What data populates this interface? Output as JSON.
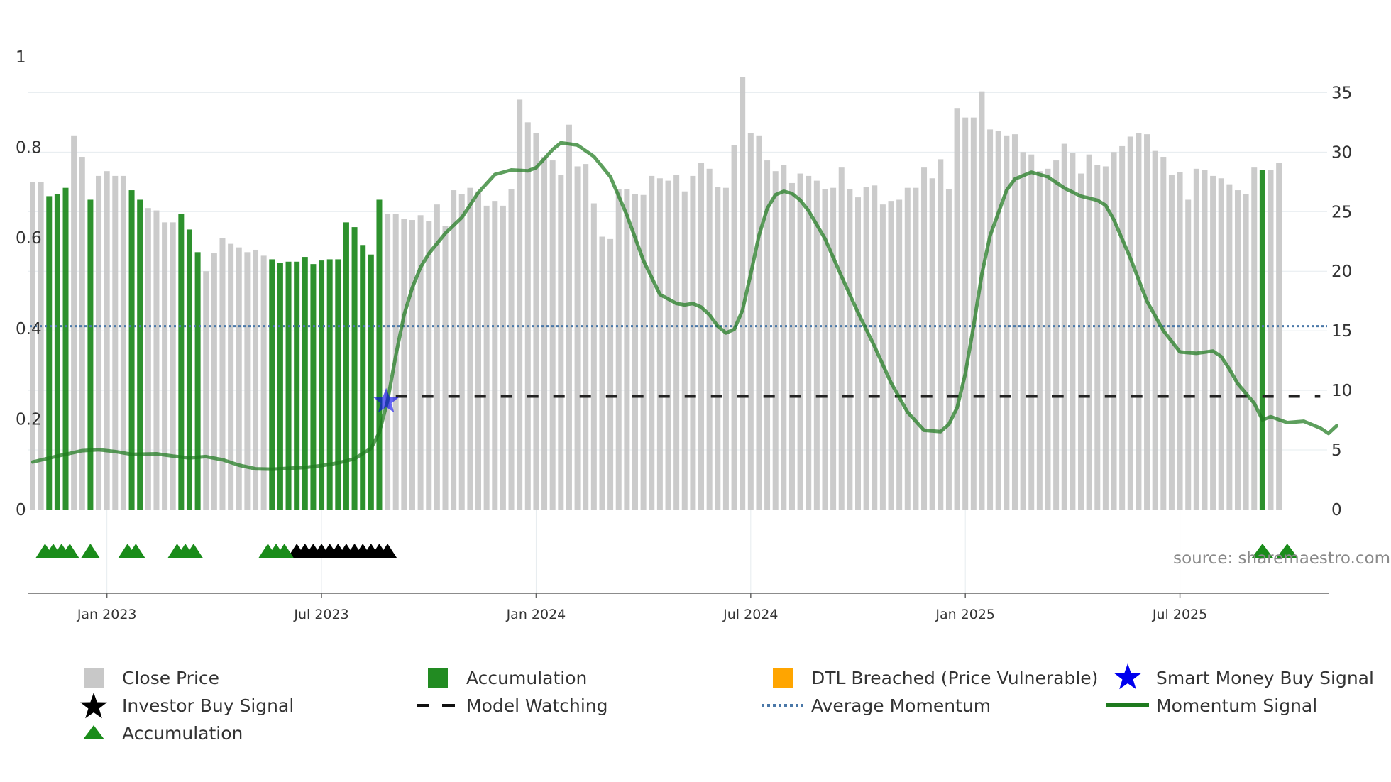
{
  "chart_data": {
    "type": "bar",
    "title": "",
    "source": "source: sharemaestro.com",
    "left_axis": {
      "range": [
        0,
        1
      ],
      "ticks": [
        0,
        0.2,
        0.4,
        0.6,
        0.8,
        1
      ],
      "tick_labels": [
        "0",
        "0.2",
        "0.4",
        "0.6",
        "0.8",
        "1"
      ]
    },
    "right_axis": {
      "range": [
        0,
        38
      ],
      "ticks": [
        0,
        5,
        10,
        15,
        20,
        25,
        30,
        35
      ],
      "tick_labels": [
        "0",
        "5",
        "10",
        "15",
        "20",
        "25",
        "30",
        "35"
      ]
    },
    "x_axis": {
      "start_week": 0,
      "ticks": [
        {
          "week": 9,
          "label": "Jan 2023"
        },
        {
          "week": 35,
          "label": "Jul 2023"
        },
        {
          "week": 61,
          "label": "Jan 2024"
        },
        {
          "week": 87,
          "label": "Jul 2024"
        },
        {
          "week": 113,
          "label": "Jan 2025"
        },
        {
          "week": 139,
          "label": "Jul 2025"
        }
      ]
    },
    "close_price_weekly": [
      27.5,
      27.5,
      26.3,
      26.5,
      27.0,
      31.4,
      29.6,
      26.0,
      28.0,
      28.4,
      28.0,
      28.0,
      26.8,
      26.0,
      25.3,
      25.1,
      24.1,
      24.1,
      24.8,
      23.5,
      21.6,
      20.0,
      21.5,
      22.8,
      22.3,
      22.0,
      21.6,
      21.8,
      21.3,
      21.0,
      20.7,
      20.8,
      20.8,
      21.2,
      20.6,
      20.9,
      21.0,
      21.0,
      24.1,
      23.7,
      22.2,
      21.4,
      26.0,
      24.8,
      24.8,
      24.4,
      24.3,
      24.7,
      24.2,
      25.6,
      23.8,
      26.8,
      26.5,
      27.0,
      26.7,
      25.5,
      25.9,
      25.5,
      26.9,
      34.4,
      32.5,
      31.6,
      29.6,
      29.3,
      28.1,
      32.3,
      28.8,
      29.0,
      25.7,
      22.9,
      22.7,
      26.9,
      26.9,
      26.5,
      26.4,
      28.0,
      27.8,
      27.6,
      28.1,
      26.7,
      28.0,
      29.1,
      28.6,
      27.1,
      27.0,
      30.6,
      36.3,
      31.6,
      31.4,
      29.3,
      28.4,
      28.9,
      27.4,
      28.2,
      28.0,
      27.6,
      26.9,
      27.0,
      28.7,
      26.9,
      26.2,
      27.1,
      27.2,
      25.6,
      25.9,
      26.0,
      27.0,
      27.0,
      28.7,
      27.8,
      29.4,
      26.9,
      33.7,
      32.9,
      32.9,
      35.1,
      31.9,
      31.8,
      31.4,
      31.5,
      30.0,
      29.8,
      28.4,
      28.6,
      29.3,
      30.7,
      29.9,
      28.2,
      29.8,
      28.9,
      28.8,
      30.0,
      30.5,
      31.3,
      31.6,
      31.5,
      30.1,
      29.6,
      28.1,
      28.3,
      26.0,
      28.6,
      28.5,
      28.0,
      27.8,
      27.3,
      26.8,
      26.5,
      28.7,
      28.5,
      28.5,
      29.1
    ],
    "accumulation_weeks": [
      2,
      3,
      4,
      7,
      12,
      13,
      18,
      19,
      20,
      29,
      30,
      31,
      32,
      33,
      34,
      35,
      36,
      37,
      38,
      39,
      40,
      41,
      42,
      149,
      152
    ],
    "accumulation_triangle_weeks": [
      1.5,
      2.5,
      3.5,
      4.5,
      7,
      11.5,
      12.5,
      17.5,
      18.5,
      19.5,
      28.5,
      29.5,
      30.5
    ],
    "investor_buy_signal_weeks": [
      32,
      33,
      34,
      35,
      36,
      37,
      38,
      39,
      40,
      41,
      42,
      43
    ],
    "smart_money_buy_signal": {
      "week": 43,
      "value": 0.245
    },
    "model_watching": {
      "level": 0.25,
      "from_week": 44,
      "to_week": 156
    },
    "average_momentum": 0.405,
    "momentum_signal": [
      [
        0,
        0.105
      ],
      [
        3,
        0.118
      ],
      [
        6,
        0.13
      ],
      [
        8,
        0.132
      ],
      [
        10,
        0.128
      ],
      [
        12,
        0.122
      ],
      [
        15,
        0.123
      ],
      [
        17,
        0.118
      ],
      [
        19,
        0.114
      ],
      [
        21,
        0.117
      ],
      [
        23,
        0.11
      ],
      [
        25,
        0.098
      ],
      [
        27,
        0.09
      ],
      [
        29,
        0.089
      ],
      [
        31,
        0.091
      ],
      [
        33,
        0.093
      ],
      [
        35,
        0.097
      ],
      [
        37,
        0.103
      ],
      [
        39,
        0.112
      ],
      [
        41,
        0.135
      ],
      [
        42,
        0.17
      ],
      [
        43,
        0.24
      ],
      [
        44,
        0.34
      ],
      [
        45,
        0.43
      ],
      [
        46,
        0.49
      ],
      [
        47,
        0.535
      ],
      [
        48,
        0.565
      ],
      [
        50,
        0.61
      ],
      [
        52,
        0.645
      ],
      [
        54,
        0.7
      ],
      [
        56,
        0.74
      ],
      [
        58,
        0.75
      ],
      [
        60,
        0.748
      ],
      [
        61,
        0.755
      ],
      [
        62,
        0.775
      ],
      [
        63,
        0.795
      ],
      [
        64,
        0.81
      ],
      [
        66,
        0.805
      ],
      [
        68,
        0.78
      ],
      [
        70,
        0.735
      ],
      [
        72,
        0.65
      ],
      [
        74,
        0.55
      ],
      [
        76,
        0.475
      ],
      [
        78,
        0.455
      ],
      [
        79,
        0.452
      ],
      [
        80,
        0.455
      ],
      [
        81,
        0.447
      ],
      [
        82,
        0.43
      ],
      [
        83,
        0.405
      ],
      [
        84,
        0.39
      ],
      [
        85,
        0.398
      ],
      [
        86,
        0.44
      ],
      [
        87,
        0.52
      ],
      [
        88,
        0.605
      ],
      [
        89,
        0.665
      ],
      [
        90,
        0.695
      ],
      [
        91,
        0.703
      ],
      [
        92,
        0.698
      ],
      [
        93,
        0.683
      ],
      [
        94,
        0.66
      ],
      [
        96,
        0.598
      ],
      [
        98,
        0.515
      ],
      [
        100,
        0.435
      ],
      [
        102,
        0.36
      ],
      [
        104,
        0.28
      ],
      [
        106,
        0.215
      ],
      [
        108,
        0.175
      ],
      [
        110,
        0.172
      ],
      [
        111,
        0.188
      ],
      [
        112,
        0.225
      ],
      [
        113,
        0.3
      ],
      [
        114,
        0.405
      ],
      [
        115,
        0.52
      ],
      [
        116,
        0.605
      ],
      [
        117,
        0.655
      ],
      [
        118,
        0.705
      ],
      [
        119,
        0.73
      ],
      [
        121,
        0.745
      ],
      [
        123,
        0.735
      ],
      [
        125,
        0.71
      ],
      [
        127,
        0.692
      ],
      [
        129,
        0.683
      ],
      [
        130,
        0.672
      ],
      [
        131,
        0.64
      ],
      [
        133,
        0.555
      ],
      [
        135,
        0.46
      ],
      [
        137,
        0.395
      ],
      [
        139,
        0.348
      ],
      [
        141,
        0.345
      ],
      [
        143,
        0.35
      ],
      [
        144,
        0.338
      ],
      [
        145,
        0.31
      ],
      [
        146,
        0.278
      ],
      [
        148,
        0.235
      ],
      [
        149,
        0.198
      ],
      [
        150,
        0.205
      ],
      [
        152,
        0.192
      ],
      [
        154,
        0.195
      ],
      [
        156,
        0.18
      ],
      [
        157,
        0.168
      ],
      [
        158,
        0.185
      ]
    ],
    "legend": [
      {
        "key": "close_price",
        "label": "Close Price"
      },
      {
        "key": "accumulation_bar",
        "label": "Accumulation"
      },
      {
        "key": "dtl_breached",
        "label": "DTL Breached (Price Vulnerable)"
      },
      {
        "key": "smart_money",
        "label": "Smart Money Buy Signal"
      },
      {
        "key": "investor_buy",
        "label": "Investor Buy Signal"
      },
      {
        "key": "model_watching",
        "label": "Model Watching"
      },
      {
        "key": "average_momentum",
        "label": "Average Momentum"
      },
      {
        "key": "momentum_signal",
        "label": "Momentum Signal"
      },
      {
        "key": "accumulation_triangle",
        "label": "Accumulation"
      }
    ],
    "colors": {
      "close_price": "#c8c8c8",
      "accumulation": "#228b22",
      "dtl_breached": "#ffa500",
      "smart_money": "#0000ee",
      "investor_buy": "#000000",
      "model_watching": "#222222",
      "average_momentum": "#4a78a8",
      "momentum_signal": "#1e7a1e",
      "triangle": "#1a8c1a"
    }
  }
}
